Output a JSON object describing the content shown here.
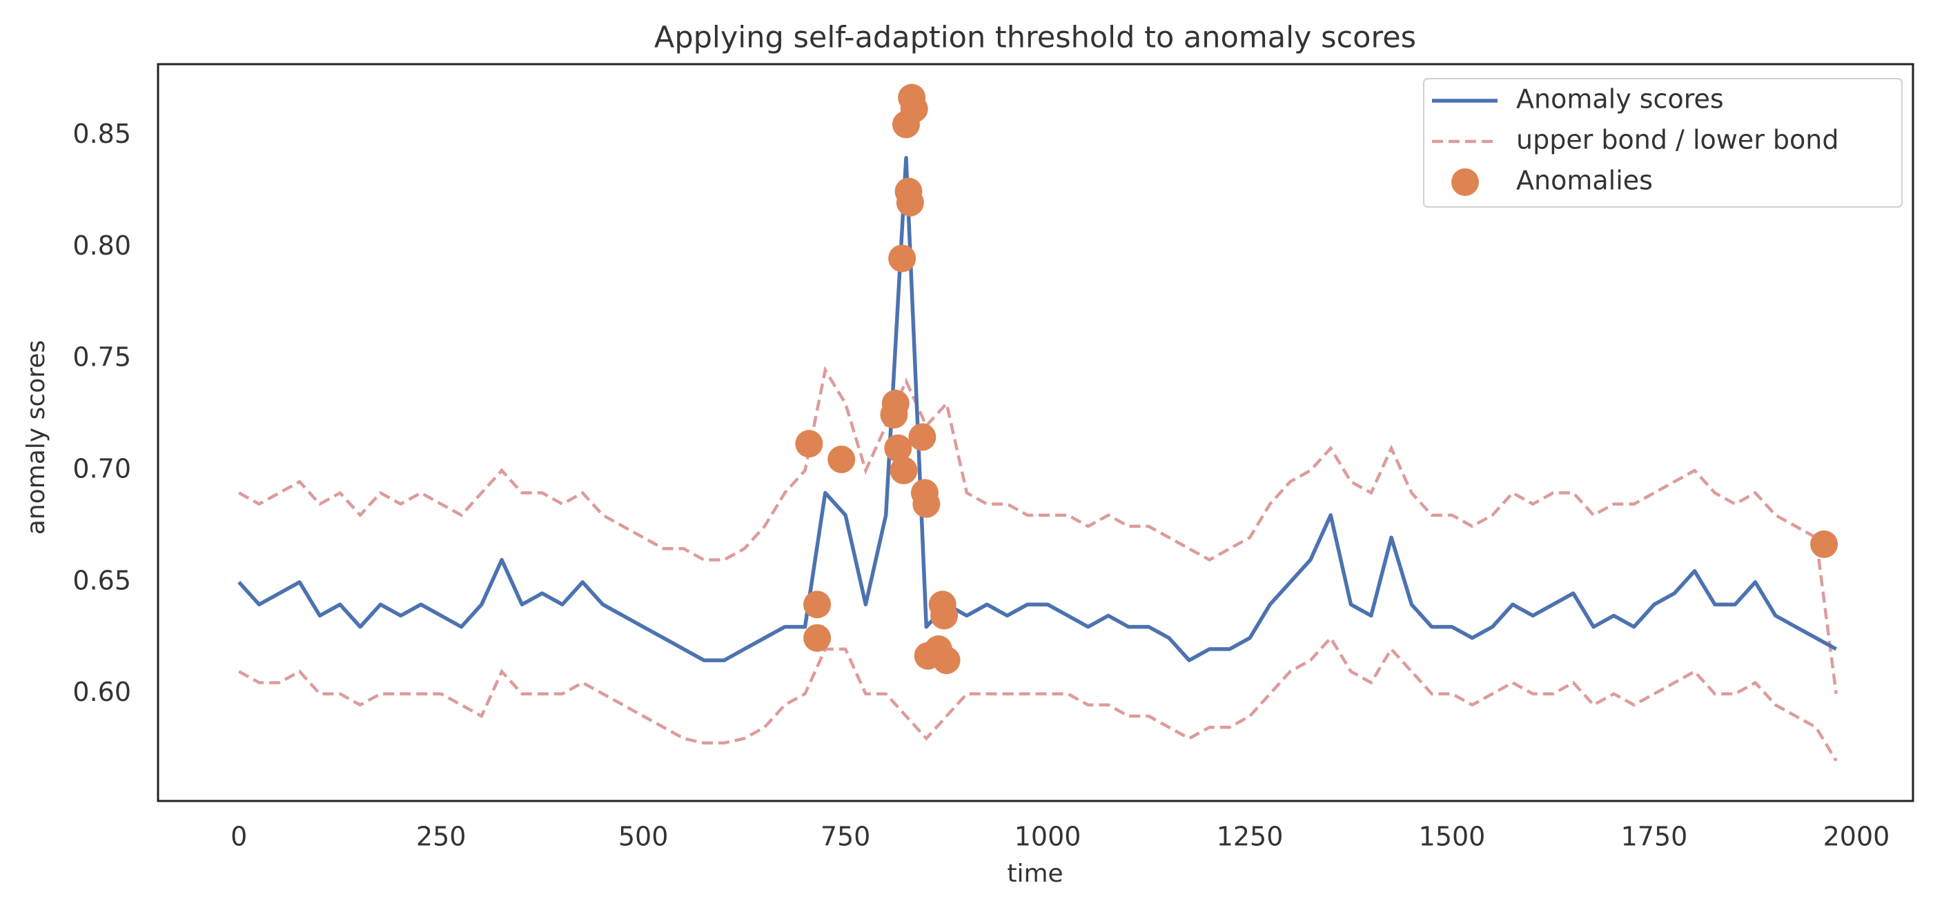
{
  "chart_data": {
    "type": "line",
    "title": "Applying  self-adaption threshold to anomaly scores",
    "xlabel": "time",
    "ylabel": "anomaly scores",
    "x": [
      0,
      25,
      50,
      75,
      100,
      125,
      150,
      175,
      200,
      225,
      250,
      275,
      300,
      325,
      350,
      375,
      400,
      425,
      450,
      475,
      500,
      525,
      550,
      575,
      600,
      625,
      650,
      675,
      700,
      725,
      750,
      775,
      800,
      825,
      850,
      875,
      900,
      925,
      950,
      975,
      1000,
      1025,
      1050,
      1075,
      1100,
      1125,
      1150,
      1175,
      1200,
      1225,
      1250,
      1275,
      1300,
      1325,
      1350,
      1375,
      1400,
      1425,
      1450,
      1475,
      1500,
      1525,
      1550,
      1575,
      1600,
      1625,
      1650,
      1675,
      1700,
      1725,
      1750,
      1775,
      1800,
      1825,
      1850,
      1875,
      1900,
      1925,
      1950,
      1975
    ],
    "series": [
      {
        "name": "Anomaly scores",
        "color": "#4c72b0",
        "values": [
          0.65,
          0.64,
          0.645,
          0.65,
          0.635,
          0.64,
          0.63,
          0.64,
          0.635,
          0.64,
          0.635,
          0.63,
          0.64,
          0.66,
          0.64,
          0.645,
          0.64,
          0.65,
          0.64,
          0.635,
          0.63,
          0.625,
          0.62,
          0.615,
          0.615,
          0.62,
          0.625,
          0.63,
          0.63,
          0.69,
          0.68,
          0.64,
          0.68,
          0.84,
          0.63,
          0.64,
          0.635,
          0.64,
          0.635,
          0.64,
          0.64,
          0.635,
          0.63,
          0.635,
          0.63,
          0.63,
          0.625,
          0.615,
          0.62,
          0.62,
          0.625,
          0.64,
          0.65,
          0.66,
          0.68,
          0.64,
          0.635,
          0.67,
          0.64,
          0.63,
          0.63,
          0.625,
          0.63,
          0.64,
          0.635,
          0.64,
          0.645,
          0.63,
          0.635,
          0.63,
          0.64,
          0.645,
          0.655,
          0.64,
          0.64,
          0.65,
          0.635,
          0.63,
          0.625,
          0.62
        ]
      },
      {
        "name": "upper bond / lower bond",
        "color": "#dd9b9b",
        "dashed": true,
        "upper": [
          0.69,
          0.685,
          0.69,
          0.695,
          0.685,
          0.69,
          0.68,
          0.69,
          0.685,
          0.69,
          0.685,
          0.68,
          0.69,
          0.7,
          0.69,
          0.69,
          0.685,
          0.69,
          0.68,
          0.675,
          0.67,
          0.665,
          0.665,
          0.66,
          0.66,
          0.665,
          0.675,
          0.69,
          0.7,
          0.745,
          0.73,
          0.7,
          0.72,
          0.74,
          0.72,
          0.73,
          0.69,
          0.685,
          0.685,
          0.68,
          0.68,
          0.68,
          0.675,
          0.68,
          0.675,
          0.675,
          0.67,
          0.665,
          0.66,
          0.665,
          0.67,
          0.685,
          0.695,
          0.7,
          0.71,
          0.695,
          0.69,
          0.71,
          0.69,
          0.68,
          0.68,
          0.675,
          0.68,
          0.69,
          0.685,
          0.69,
          0.69,
          0.68,
          0.685,
          0.685,
          0.69,
          0.695,
          0.7,
          0.69,
          0.685,
          0.69,
          0.68,
          0.675,
          0.67,
          0.6
        ],
        "lower": [
          0.61,
          0.605,
          0.605,
          0.61,
          0.6,
          0.6,
          0.595,
          0.6,
          0.6,
          0.6,
          0.6,
          0.595,
          0.59,
          0.61,
          0.6,
          0.6,
          0.6,
          0.605,
          0.6,
          0.595,
          0.59,
          0.585,
          0.58,
          0.578,
          0.578,
          0.58,
          0.585,
          0.595,
          0.6,
          0.62,
          0.62,
          0.6,
          0.6,
          0.59,
          0.58,
          0.59,
          0.6,
          0.6,
          0.6,
          0.6,
          0.6,
          0.6,
          0.595,
          0.595,
          0.59,
          0.59,
          0.585,
          0.58,
          0.585,
          0.585,
          0.59,
          0.6,
          0.61,
          0.615,
          0.625,
          0.61,
          0.605,
          0.62,
          0.61,
          0.6,
          0.6,
          0.595,
          0.6,
          0.605,
          0.6,
          0.6,
          0.605,
          0.595,
          0.6,
          0.595,
          0.6,
          0.605,
          0.61,
          0.6,
          0.6,
          0.605,
          0.595,
          0.59,
          0.585,
          0.57
        ]
      },
      {
        "name": "Anomalies",
        "color": "#dd8452",
        "type": "scatter",
        "x": [
          705,
          715,
          715,
          745,
          810,
          812,
          815,
          820,
          822,
          825,
          828,
          830,
          832,
          835,
          845,
          848,
          850,
          852,
          865,
          870,
          872,
          875,
          1960
        ],
        "values": [
          0.712,
          0.64,
          0.625,
          0.705,
          0.725,
          0.73,
          0.71,
          0.795,
          0.7,
          0.855,
          0.825,
          0.82,
          0.867,
          0.862,
          0.715,
          0.69,
          0.685,
          0.617,
          0.62,
          0.64,
          0.635,
          0.615,
          0.667
        ]
      }
    ],
    "xlim": [
      -100,
      2070
    ],
    "ylim": [
      0.552,
      0.882
    ],
    "xticks": [
      0,
      250,
      500,
      750,
      1000,
      1250,
      1500,
      1750,
      2000
    ],
    "yticks": [
      {
        "value": 0.6,
        "label": "0.60"
      },
      0.65,
      {
        "value": 0.7,
        "label": "0.70"
      },
      0.75,
      {
        "value": 0.8,
        "label": "0.80"
      },
      0.85
    ],
    "grid": false,
    "legend": "upper right"
  }
}
